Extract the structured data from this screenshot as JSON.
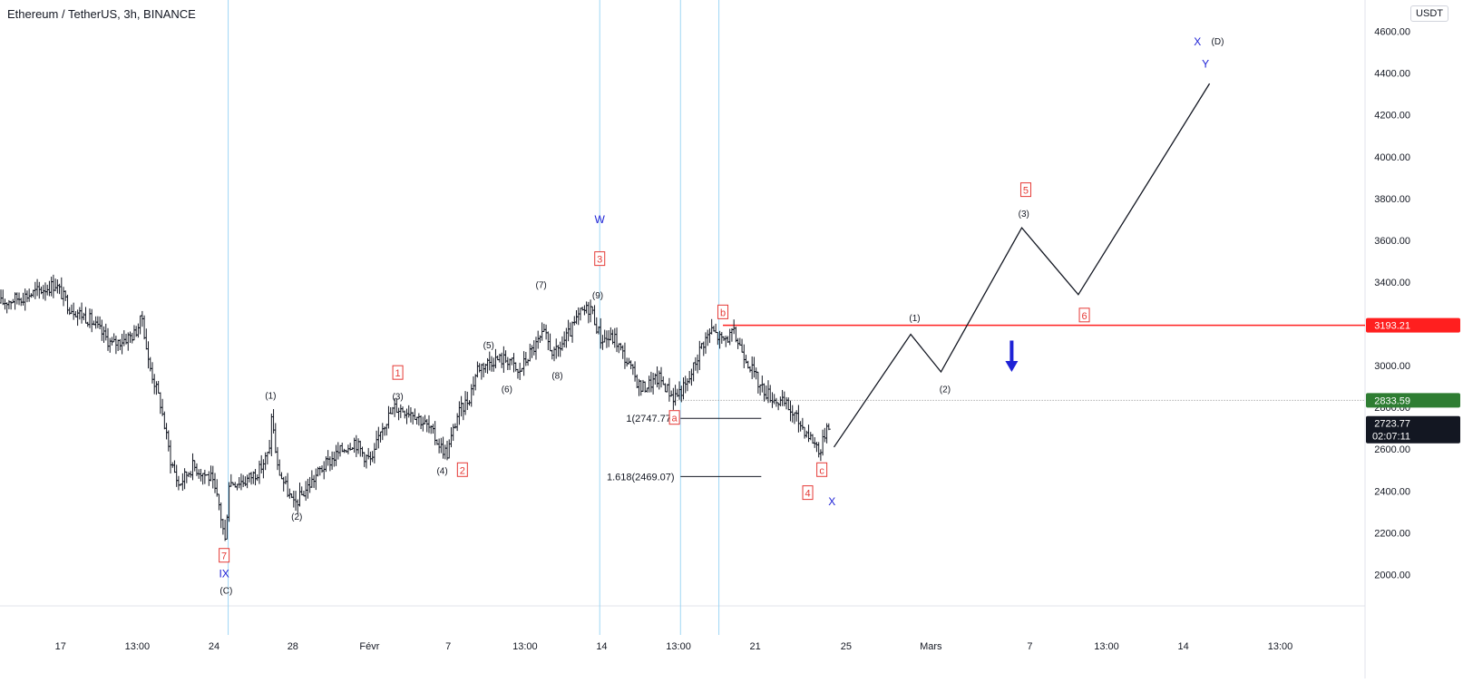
{
  "header": {
    "symbol_title": "Ethereum / TetherUS, 3h, BINANCE",
    "currency_badge": "USDT"
  },
  "colors": {
    "candle": "#131722",
    "wave_red": "#e53935",
    "wave_blue": "#1e22d6",
    "level_line": "#ff1f1f",
    "last_price_bg": "#131722",
    "prev_close_bg": "#2e7d32",
    "vertical_lines": "#9ed6f5",
    "grid": "#e0e3eb",
    "down_arrow": "#1e22d6"
  },
  "chart_data": {
    "type": "candlestick",
    "title": "Ethereum / TetherUS, 3h, BINANCE",
    "ylim": [
      1850,
      4750
    ],
    "y_ticks": [
      2000,
      2200,
      2400,
      2600,
      2800,
      3000,
      3200,
      3400,
      3600,
      3800,
      4000,
      4200,
      4400,
      4600
    ],
    "y_tick_labels": [
      "2000.00",
      "2200.00",
      "2400.00",
      "2600.00",
      "2800.00",
      "3000.00",
      "3200.00",
      "3400.00",
      "3600.00",
      "3800.00",
      "4000.00",
      "4200.00",
      "4400.00",
      "4600.00"
    ],
    "x_tick_labels": [
      "17",
      "13:00",
      "24",
      "28",
      "Févr",
      "7",
      "13:00",
      "14",
      "13:00",
      "21",
      "25",
      "Mars",
      "7",
      "13:00",
      "14",
      "13:00"
    ],
    "x_tick_bars": [
      30,
      68,
      106,
      145,
      183,
      222,
      260,
      298,
      336,
      374,
      419,
      461,
      510,
      548,
      586,
      634
    ],
    "last_bar": 410,
    "bars_visible": 676,
    "price_path": [
      [
        0,
        3300
      ],
      [
        14,
        3340
      ],
      [
        27,
        3390
      ],
      [
        34,
        3280
      ],
      [
        44,
        3220
      ],
      [
        55,
        3100
      ],
      [
        66,
        3150
      ],
      [
        70,
        3230
      ],
      [
        73,
        3020
      ],
      [
        79,
        2820
      ],
      [
        84,
        2550
      ],
      [
        88,
        2430
      ],
      [
        95,
        2520
      ],
      [
        104,
        2460
      ],
      [
        108,
        2330
      ],
      [
        111,
        2160
      ],
      [
        113,
        2440
      ],
      [
        121,
        2450
      ],
      [
        128,
        2500
      ],
      [
        133,
        2590
      ],
      [
        134,
        2770
      ],
      [
        137,
        2510
      ],
      [
        145,
        2330
      ],
      [
        152,
        2420
      ],
      [
        158,
        2500
      ],
      [
        168,
        2590
      ],
      [
        175,
        2640
      ],
      [
        180,
        2570
      ],
      [
        184,
        2540
      ],
      [
        188,
        2700
      ],
      [
        195,
        2800
      ],
      [
        204,
        2780
      ],
      [
        212,
        2700
      ],
      [
        218,
        2610
      ],
      [
        221,
        2580
      ],
      [
        226,
        2760
      ],
      [
        232,
        2850
      ],
      [
        236,
        2990
      ],
      [
        244,
        3030
      ],
      [
        252,
        3030
      ],
      [
        256,
        2960
      ],
      [
        262,
        3060
      ],
      [
        269,
        3150
      ],
      [
        274,
        3050
      ],
      [
        282,
        3160
      ],
      [
        287,
        3250
      ],
      [
        292,
        3280
      ],
      [
        297,
        3130
      ],
      [
        304,
        3130
      ],
      [
        311,
        3000
      ],
      [
        317,
        2890
      ],
      [
        326,
        2940
      ],
      [
        333,
        2850
      ],
      [
        340,
        2910
      ],
      [
        347,
        3100
      ],
      [
        352,
        3170
      ],
      [
        357,
        3120
      ],
      [
        363,
        3150
      ],
      [
        369,
        3040
      ],
      [
        376,
        2900
      ],
      [
        383,
        2840
      ],
      [
        389,
        2810
      ],
      [
        396,
        2720
      ],
      [
        403,
        2630
      ],
      [
        406,
        2590
      ],
      [
        409,
        2720
      ],
      [
        410,
        2723.77
      ]
    ],
    "current_price": 2723.77,
    "countdown": "02:07:11",
    "prev_close": 2833.59,
    "resistance_level": 3193.21,
    "fib_levels": [
      {
        "label": "1(2747.77)",
        "value": 2747.77
      },
      {
        "label": "1.618(2469.07)",
        "value": 2469.07
      }
    ],
    "projection_path": [
      [
        413,
        2610
      ],
      [
        451,
        3150
      ],
      [
        466,
        2970
      ],
      [
        506,
        3660
      ],
      [
        534,
        3340
      ],
      [
        599,
        4350
      ]
    ],
    "vertical_marker_bars": [
      113,
      297,
      337,
      356
    ],
    "wave_labels": [
      {
        "text": "7",
        "bar": 111,
        "price": 2090,
        "style": "red-box"
      },
      {
        "text": "IX",
        "bar": 111,
        "price": 2005,
        "style": "blue"
      },
      {
        "text": "(C)",
        "bar": 112,
        "price": 1925,
        "style": "black"
      },
      {
        "text": "(1)",
        "bar": 134,
        "price": 2860,
        "style": "black"
      },
      {
        "text": "(2)",
        "bar": 147,
        "price": 2280,
        "style": "black"
      },
      {
        "text": "1",
        "bar": 197,
        "price": 2965,
        "style": "red-box"
      },
      {
        "text": "(3)",
        "bar": 197,
        "price": 2855,
        "style": "black"
      },
      {
        "text": "(4)",
        "bar": 219,
        "price": 2500,
        "style": "black"
      },
      {
        "text": "2",
        "bar": 229,
        "price": 2500,
        "style": "red-box"
      },
      {
        "text": "(5)",
        "bar": 242,
        "price": 3100,
        "style": "black"
      },
      {
        "text": "(6)",
        "bar": 251,
        "price": 2890,
        "style": "black"
      },
      {
        "text": "(7)",
        "bar": 268,
        "price": 3390,
        "style": "black"
      },
      {
        "text": "(8)",
        "bar": 276,
        "price": 2955,
        "style": "black"
      },
      {
        "text": "W",
        "bar": 297,
        "price": 3700,
        "style": "blue"
      },
      {
        "text": "3",
        "bar": 297,
        "price": 3510,
        "style": "red-box"
      },
      {
        "text": "(9)",
        "bar": 296,
        "price": 3340,
        "style": "black"
      },
      {
        "text": "b",
        "bar": 358,
        "price": 3255,
        "style": "red-box"
      },
      {
        "text": "a",
        "bar": 334,
        "price": 2750,
        "style": "red-box"
      },
      {
        "text": "c",
        "bar": 407,
        "price": 2500,
        "style": "red-box"
      },
      {
        "text": "4",
        "bar": 400,
        "price": 2390,
        "style": "red-box"
      },
      {
        "text": "X",
        "bar": 412,
        "price": 2350,
        "style": "blue"
      },
      {
        "text": "(1)",
        "bar": 453,
        "price": 3230,
        "style": "black"
      },
      {
        "text": "(2)",
        "bar": 468,
        "price": 2890,
        "style": "black"
      },
      {
        "text": "5",
        "bar": 508,
        "price": 3840,
        "style": "red-box"
      },
      {
        "text": "(3)",
        "bar": 507,
        "price": 3730,
        "style": "black"
      },
      {
        "text": "6",
        "bar": 537,
        "price": 3240,
        "style": "red-box"
      },
      {
        "text": "X",
        "bar": 593,
        "price": 4550,
        "style": "blue"
      },
      {
        "text": "(D)",
        "bar": 603,
        "price": 4555,
        "style": "black"
      },
      {
        "text": "Y",
        "bar": 597,
        "price": 4445,
        "style": "blue"
      }
    ],
    "down_arrow": {
      "bar": 501,
      "from": 3120,
      "to": 2970
    }
  }
}
